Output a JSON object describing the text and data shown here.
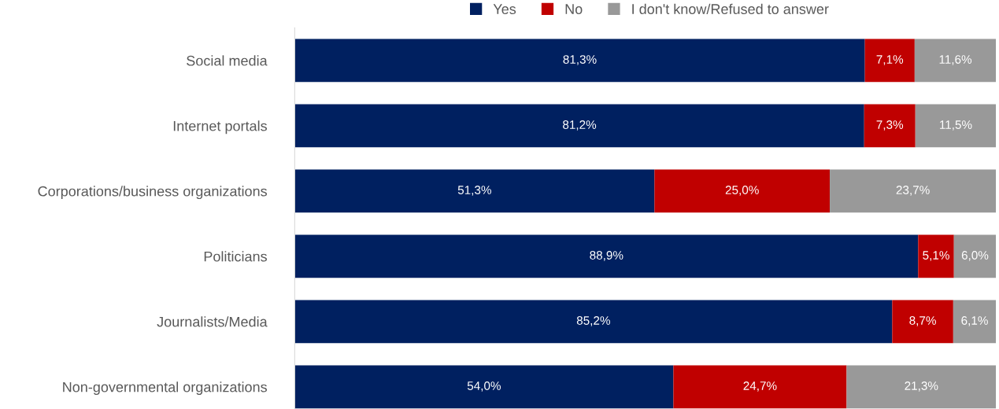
{
  "chart_data": {
    "type": "bar",
    "orientation": "horizontal",
    "stacked": true,
    "categories": [
      "Social media",
      "Internet portals",
      "Corporations/business organizations",
      "Politicians",
      "Journalists/Media",
      "Non-governmental organizations"
    ],
    "series": [
      {
        "name": "Yes",
        "color": "#002060",
        "values": [
          81.3,
          81.2,
          51.3,
          88.9,
          85.2,
          54.0
        ],
        "value_labels": [
          "81,3%",
          "81,2%",
          "51,3%",
          "88,9%",
          "85,2%",
          "54,0%"
        ]
      },
      {
        "name": "No",
        "color": "#c00000",
        "values": [
          7.1,
          7.3,
          25.0,
          5.1,
          8.7,
          24.7
        ],
        "value_labels": [
          "7,1%",
          "7,3%",
          "25,0%",
          "5,1%",
          "8,7%",
          "24,7%"
        ]
      },
      {
        "name": "I don't know/Refused to answer",
        "color": "#999999",
        "values": [
          11.6,
          11.5,
          23.7,
          6.0,
          6.1,
          21.3
        ],
        "value_labels": [
          "11,6%",
          "11,5%",
          "23,7%",
          "6,0%",
          "6,1%",
          "21,3%"
        ]
      }
    ],
    "xlim": [
      0,
      100
    ],
    "tick_labels": "y",
    "grid": false,
    "legend": "top"
  }
}
